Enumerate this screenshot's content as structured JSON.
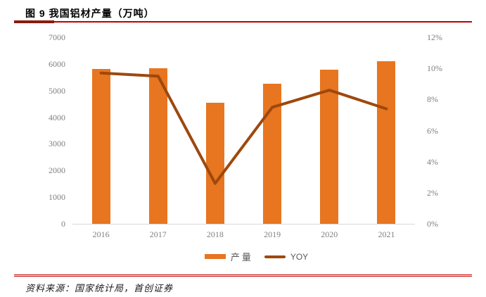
{
  "header": {
    "title": "图 9 我国铝材产量（万吨）"
  },
  "colors": {
    "accent_red": "#C00000",
    "accent_dark_red": "#8B1A10",
    "bar_orange": "#E8751F",
    "line_brown": "#9E480E",
    "tick_gray": "#808080"
  },
  "chart_data": {
    "type": "bar+line",
    "title": "我国铝材产量（万吨）",
    "categories": [
      "2016",
      "2017",
      "2018",
      "2019",
      "2020",
      "2021"
    ],
    "series": [
      {
        "name": "产量",
        "type": "bar",
        "axis": "left",
        "color": "#E8751F",
        "values": [
          5800,
          5830,
          4550,
          5250,
          5780,
          6100
        ]
      },
      {
        "name": "YOY",
        "type": "line",
        "axis": "right",
        "color": "#9E480E",
        "values": [
          9.7,
          9.5,
          2.6,
          7.5,
          8.6,
          7.4
        ]
      }
    ],
    "y_left": {
      "min": 0,
      "max": 7000,
      "ticks": [
        "7000",
        "6000",
        "5000",
        "4000",
        "3000",
        "2000",
        "1000",
        "0"
      ]
    },
    "y_right": {
      "min": 0,
      "max": 12,
      "unit": "%",
      "ticks": [
        "12%",
        "10%",
        "8%",
        "6%",
        "4%",
        "2%",
        "0%"
      ]
    },
    "grid": false,
    "legend_position": "bottom"
  },
  "footer": {
    "source": "资料来源：国家统计局，首创证券"
  }
}
